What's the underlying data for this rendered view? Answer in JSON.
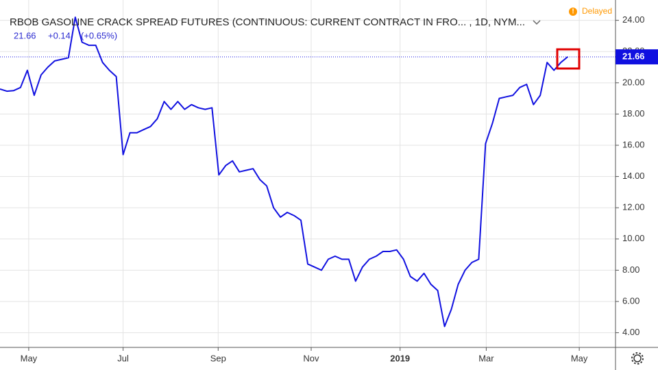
{
  "chart_data": {
    "type": "line",
    "title": "RBOB GASOLINE CRACK SPREAD FUTURES (CONTINUOUS: CURRENT CONTRACT IN FRO... , 1D, NYM...",
    "change": "+0.14",
    "change_percent": "(+0.65%)",
    "status": "Delayed",
    "series": [
      {
        "name": "RBOB Gasoline Crack Spread",
        "color": "#1010e0",
        "values": [
          19.6,
          19.46,
          19.5,
          19.7,
          20.8,
          19.2,
          20.5,
          21.0,
          21.4,
          21.5,
          21.6,
          24.2,
          22.6,
          22.4,
          22.4,
          21.3,
          20.8,
          20.4,
          15.4,
          16.8,
          16.8,
          17.0,
          17.2,
          17.7,
          18.8,
          18.3,
          18.8,
          18.3,
          18.6,
          18.4,
          18.3,
          18.4,
          14.1,
          14.7,
          15.0,
          14.3,
          14.4,
          14.5,
          13.8,
          13.4,
          12.0,
          11.4,
          11.7,
          11.5,
          11.2,
          8.4,
          8.2,
          8.0,
          8.7,
          8.9,
          8.7,
          8.7,
          7.3,
          8.2,
          8.7,
          8.9,
          9.2,
          9.2,
          9.3,
          8.7,
          7.6,
          7.3,
          7.8,
          7.1,
          6.7,
          4.4,
          5.5,
          7.1,
          8.0,
          8.5,
          8.7,
          16.1,
          17.4,
          19.0,
          19.1,
          19.2,
          19.7,
          19.9,
          18.6,
          19.2,
          21.3,
          20.8,
          21.3,
          21.66
        ]
      }
    ],
    "xlim": [
      0,
      90
    ],
    "xticks": [
      {
        "value": 4.2,
        "label": "May"
      },
      {
        "value": 18,
        "label": "Jul"
      },
      {
        "value": 31.9,
        "label": "Sep"
      },
      {
        "value": 45.5,
        "label": "Nov"
      },
      {
        "value": 58.5,
        "label": "2019"
      },
      {
        "value": 71.1,
        "label": "Mar"
      },
      {
        "value": 84.7,
        "label": "May"
      }
    ],
    "ylim": [
      3.06,
      25.3
    ],
    "yticks": [
      {
        "value": 4,
        "label": "4.00"
      },
      {
        "value": 6,
        "label": "6.00"
      },
      {
        "value": 8,
        "label": "8.00"
      },
      {
        "value": 10,
        "label": "10.00"
      },
      {
        "value": 12,
        "label": "12.00"
      },
      {
        "value": 14,
        "label": "14.00"
      },
      {
        "value": 16,
        "label": "16.00"
      },
      {
        "value": 18,
        "label": "18.00"
      },
      {
        "value": 20,
        "label": "20.00"
      },
      {
        "value": 22,
        "label": "22.00"
      },
      {
        "value": 24,
        "label": "24.00"
      }
    ],
    "grid": true
  }
}
